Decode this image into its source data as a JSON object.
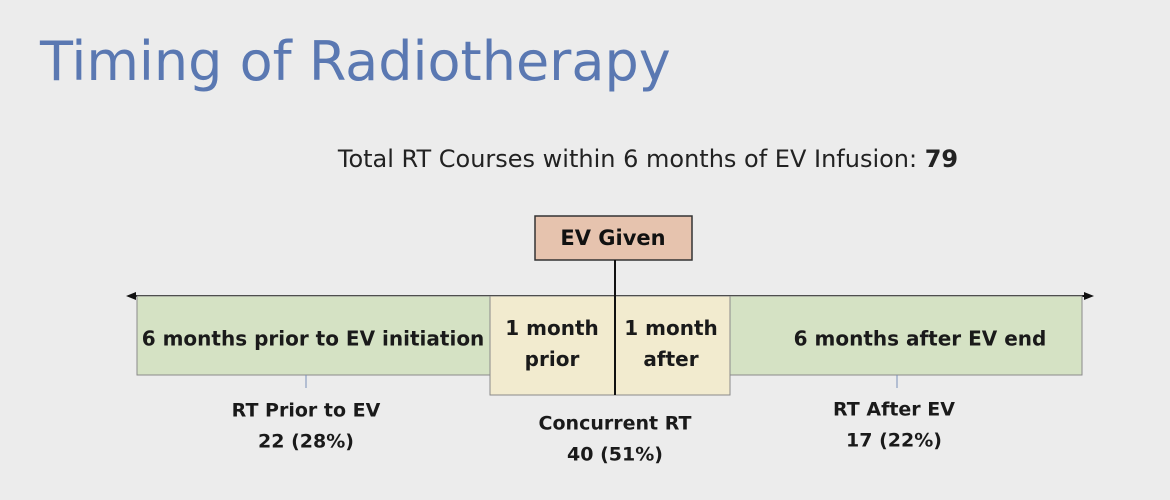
{
  "header": {
    "title": "Timing of Radiotherapy",
    "subtitle": "Total RT Courses within 6 months of EV Infusion: ",
    "total": "79"
  },
  "marker": {
    "label": "EV Given"
  },
  "segments": [
    {
      "lines": [
        "6 months prior to EV initiation"
      ]
    },
    {
      "lines": [
        "1 month",
        "prior"
      ]
    },
    {
      "lines": [
        "1 month",
        "after"
      ]
    },
    {
      "lines": [
        "6 months after EV end"
      ]
    }
  ],
  "groups": [
    {
      "label": "RT Prior to EV",
      "count": "22 (28%)"
    },
    {
      "label": "Concurrent RT",
      "count": "40 (51%)"
    },
    {
      "label": "RT After EV",
      "count": "17 (22%)"
    }
  ]
}
